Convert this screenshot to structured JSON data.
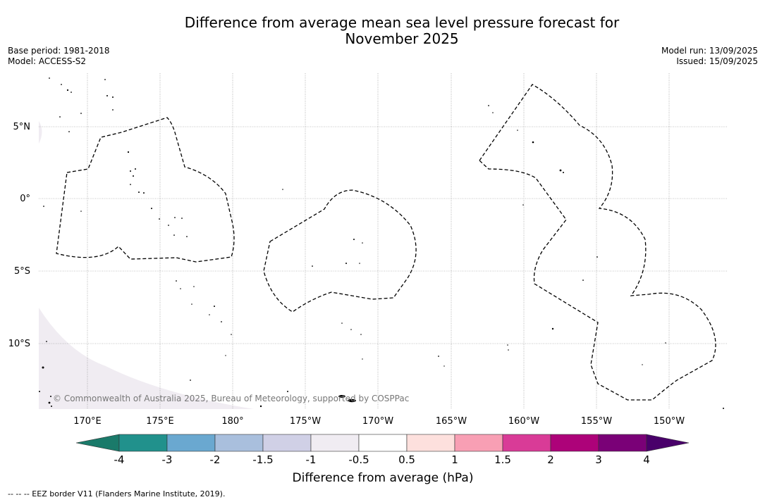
{
  "title": {
    "line1": "Difference from average mean sea level pressure forecast for",
    "line2": "November 2025"
  },
  "meta_left": {
    "base_period": "Base period: 1981-2018",
    "model": "Model: ACCESS-S2"
  },
  "meta_right": {
    "model_run": "Model run: 13/09/2025",
    "issued": "Issued: 15/09/2025"
  },
  "map": {
    "lat_labels": [
      "5°N",
      "0°",
      "5°S",
      "10°S"
    ],
    "lon_labels": [
      "170°E",
      "175°E",
      "180°",
      "175°W",
      "170°W",
      "165°W",
      "160°W",
      "155°W",
      "150°W"
    ],
    "copyright": "© Commonwealth of Australia 2025, Bureau of Meteorology, supported by COSPPac",
    "fill_colors": {
      "negative_small": "#f0ecf2",
      "land": "#000000"
    }
  },
  "legend": {
    "label": "Difference from average (hPa)",
    "ticks": [
      "-4",
      "-3",
      "-2",
      "-1.5",
      "-1",
      "-0.5",
      "0.5",
      "1",
      "1.5",
      "2",
      "3",
      "4"
    ],
    "colors": [
      "#1a7a6a",
      "#21918c",
      "#6aa8d0",
      "#a9bfdd",
      "#d0d0e6",
      "#f0ecf2",
      "#ffffff",
      "#fde0dd",
      "#f89fb4",
      "#d93b97",
      "#ad0279",
      "#7a0177",
      "#49006a"
    ]
  },
  "footer": "--  --  -- EEZ border V11 (Flanders Marine Institute, 2019)."
}
